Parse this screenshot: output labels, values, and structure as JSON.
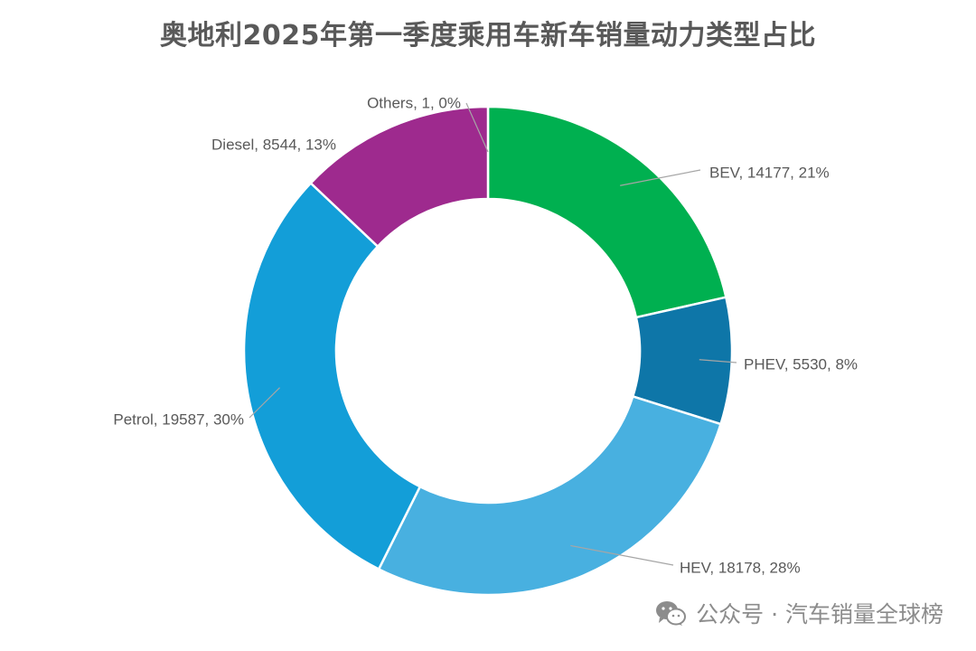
{
  "chart_data": {
    "type": "pie",
    "variant": "donut",
    "title": "奥地利2025年第一季度乘用车新车销量动力类型占比",
    "label_format": "{name}, {value}, {pct}",
    "series": [
      {
        "name": "BEV",
        "value": 14177,
        "pct": "21%",
        "color": "#00b050"
      },
      {
        "name": "PHEV",
        "value": 5530,
        "pct": "8%",
        "color": "#0e76a8"
      },
      {
        "name": "HEV",
        "value": 18178,
        "pct": "28%",
        "color": "#48b0e0"
      },
      {
        "name": "Petrol",
        "value": 19587,
        "pct": "30%",
        "color": "#139ed8"
      },
      {
        "name": "Diesel",
        "value": 8544,
        "pct": "13%",
        "color": "#9e2a8e"
      },
      {
        "name": "Others",
        "value": 1,
        "pct": "0%",
        "color": "#9e2a8e"
      }
    ]
  },
  "watermark": {
    "icon": "wechat-icon",
    "text": "公众号 · 汽车销量全球榜"
  }
}
